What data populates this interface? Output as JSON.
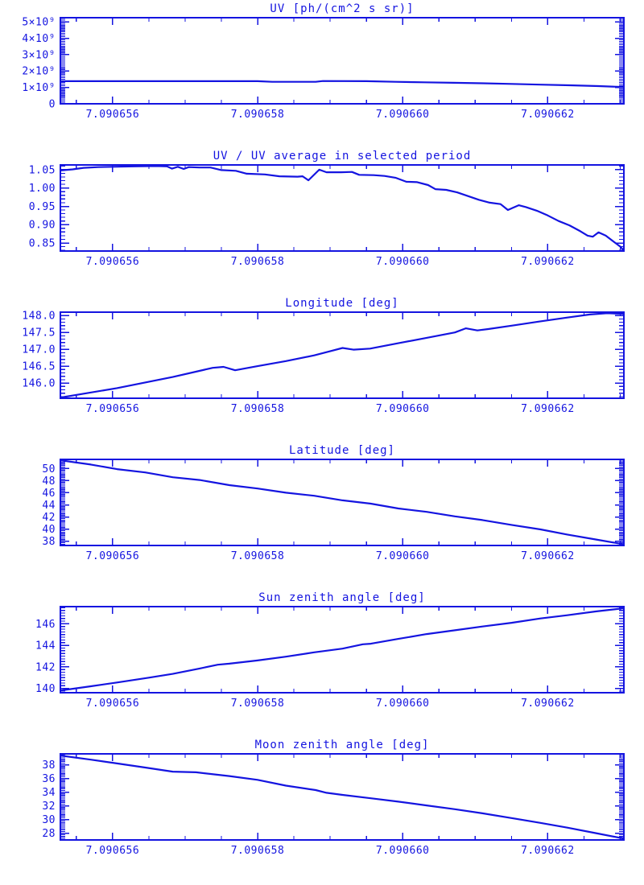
{
  "page": {
    "background": "#FFFFFF",
    "plot_color": "#1414E0"
  },
  "x_axis": {
    "lim": [
      7.09065528,
      7.09066305
    ],
    "ticks": [
      {
        "value": 7.090656,
        "label": "7.090656"
      },
      {
        "value": 7.090658,
        "label": "7.090658"
      },
      {
        "value": 7.09066,
        "label": "7.090660"
      },
      {
        "value": 7.090662,
        "label": "7.090662"
      }
    ],
    "minor_step": 5e-07
  },
  "chart_data": [
    {
      "type": "line",
      "title": "UV [ph/(cm^2 s sr)]",
      "ylim": [
        0,
        5250000000.0
      ],
      "yticks": [
        {
          "value": 5000000000.0,
          "label": "5×10⁹"
        },
        {
          "value": 4000000000.0,
          "label": "4×10⁹"
        },
        {
          "value": 3000000000.0,
          "label": "3×10⁹"
        },
        {
          "value": 2000000000.0,
          "label": "2×10⁹"
        },
        {
          "value": 1000000000.0,
          "label": "1×10⁹"
        },
        {
          "value": 0,
          "label": "0"
        }
      ],
      "y_minor_step": 100000000.0,
      "points": [
        [
          7.0906553,
          1380000000.0
        ],
        [
          7.090657,
          1380000000.0
        ],
        [
          7.090658,
          1380000000.0
        ],
        [
          7.0906582,
          1340000000.0
        ],
        [
          7.0906588,
          1340000000.0
        ],
        [
          7.0906589,
          1390000000.0
        ],
        [
          7.0906595,
          1380000000.0
        ],
        [
          7.0906599,
          1340000000.0
        ],
        [
          7.0906603,
          1310000000.0
        ],
        [
          7.0906607,
          1280000000.0
        ],
        [
          7.0906611,
          1250000000.0
        ],
        [
          7.0906615,
          1210000000.0
        ],
        [
          7.0906619,
          1170000000.0
        ],
        [
          7.0906623,
          1130000000.0
        ],
        [
          7.0906627,
          1080000000.0
        ],
        [
          7.09066305,
          1020000000.0
        ]
      ]
    },
    {
      "type": "line",
      "title": "UV / UV average in selected period",
      "ylim": [
        0.828,
        1.063
      ],
      "yticks": [
        {
          "value": 1.05,
          "label": "1.05"
        },
        {
          "value": 1.0,
          "label": "1.00"
        },
        {
          "value": 0.95,
          "label": "0.95"
        },
        {
          "value": 0.9,
          "label": "0.90"
        },
        {
          "value": 0.85,
          "label": "0.85"
        }
      ],
      "y_minor_step": 0.01,
      "points": [
        [
          7.09065528,
          1.048
        ],
        [
          7.09065545,
          1.051
        ],
        [
          7.0906556,
          1.055
        ],
        [
          7.0906558,
          1.057
        ],
        [
          7.090656,
          1.058
        ],
        [
          7.0906563,
          1.059
        ],
        [
          7.0906566,
          1.06
        ],
        [
          7.09065675,
          1.059
        ],
        [
          7.09065682,
          1.053
        ],
        [
          7.0906569,
          1.058
        ],
        [
          7.09065698,
          1.052
        ],
        [
          7.09065705,
          1.057
        ],
        [
          7.0906572,
          1.056
        ],
        [
          7.09065735,
          1.056
        ],
        [
          7.0906575,
          1.049
        ],
        [
          7.0906577,
          1.047
        ],
        [
          7.09065785,
          1.039
        ],
        [
          7.0906581,
          1.037
        ],
        [
          7.0906583,
          1.032
        ],
        [
          7.09065855,
          1.031
        ],
        [
          7.09065862,
          1.032
        ],
        [
          7.0906587,
          1.021
        ],
        [
          7.09065885,
          1.05
        ],
        [
          7.09065895,
          1.043
        ],
        [
          7.09065915,
          1.043
        ],
        [
          7.0906593,
          1.044
        ],
        [
          7.0906594,
          1.036
        ],
        [
          7.0906596,
          1.035
        ],
        [
          7.09065975,
          1.033
        ],
        [
          7.0906599,
          1.028
        ],
        [
          7.09066005,
          1.017
        ],
        [
          7.0906602,
          1.016
        ],
        [
          7.09066035,
          1.008
        ],
        [
          7.09066045,
          0.997
        ],
        [
          7.0906606,
          0.995
        ],
        [
          7.09066075,
          0.988
        ],
        [
          7.0906609,
          0.978
        ],
        [
          7.09066105,
          0.968
        ],
        [
          7.0906612,
          0.96
        ],
        [
          7.09066135,
          0.956
        ],
        [
          7.09066145,
          0.94
        ],
        [
          7.0906616,
          0.953
        ],
        [
          7.0906617,
          0.948
        ],
        [
          7.09066185,
          0.938
        ],
        [
          7.090662,
          0.925
        ],
        [
          7.09066215,
          0.91
        ],
        [
          7.0906623,
          0.898
        ],
        [
          7.09066245,
          0.882
        ],
        [
          7.09066255,
          0.87
        ],
        [
          7.09066262,
          0.867
        ],
        [
          7.0906627,
          0.879
        ],
        [
          7.0906628,
          0.87
        ],
        [
          7.0906629,
          0.855
        ],
        [
          7.090663,
          0.84
        ],
        [
          7.09066305,
          0.829
        ]
      ]
    },
    {
      "type": "line",
      "title": "Longitude [deg]",
      "ylim": [
        145.55,
        148.1
      ],
      "yticks": [
        {
          "value": 148.0,
          "label": "148.0"
        },
        {
          "value": 147.5,
          "label": "147.5"
        },
        {
          "value": 147.0,
          "label": "147.0"
        },
        {
          "value": 146.5,
          "label": "146.5"
        },
        {
          "value": 146.0,
          "label": "146.0"
        }
      ],
      "y_minor_step": 0.1,
      "points": [
        [
          7.09065528,
          145.57
        ],
        [
          7.09065606,
          145.85
        ],
        [
          7.09065683,
          146.18
        ],
        [
          7.09065738,
          146.45
        ],
        [
          7.09065753,
          146.48
        ],
        [
          7.09065769,
          146.38
        ],
        [
          7.090658,
          146.5
        ],
        [
          7.09065839,
          146.65
        ],
        [
          7.09065878,
          146.82
        ],
        [
          7.09065901,
          146.95
        ],
        [
          7.09065917,
          147.04
        ],
        [
          7.09065932,
          146.99
        ],
        [
          7.09065955,
          147.02
        ],
        [
          7.09065994,
          147.18
        ],
        [
          7.09066033,
          147.34
        ],
        [
          7.09066072,
          147.5
        ],
        [
          7.09066087,
          147.62
        ],
        [
          7.09066103,
          147.56
        ],
        [
          7.09066118,
          147.6
        ],
        [
          7.0906615,
          147.7
        ],
        [
          7.09066188,
          147.82
        ],
        [
          7.09066227,
          147.94
        ],
        [
          7.09066258,
          148.03
        ],
        [
          7.09066282,
          148.07
        ],
        [
          7.09066305,
          148.05
        ]
      ]
    },
    {
      "type": "line",
      "title": "Latitude [deg]",
      "ylim": [
        37.3,
        51.5
      ],
      "yticks": [
        {
          "value": 50,
          "label": "50"
        },
        {
          "value": 48,
          "label": "48"
        },
        {
          "value": 46,
          "label": "46"
        },
        {
          "value": 44,
          "label": "44"
        },
        {
          "value": 42,
          "label": "42"
        },
        {
          "value": 40,
          "label": "40"
        },
        {
          "value": 38,
          "label": "38"
        }
      ],
      "y_minor_step": 0.25,
      "points": [
        [
          7.09065528,
          51.35
        ],
        [
          7.0906557,
          50.65
        ],
        [
          7.09065606,
          49.9
        ],
        [
          7.09065645,
          49.35
        ],
        [
          7.09065683,
          48.55
        ],
        [
          7.0906572,
          48.1
        ],
        [
          7.09065761,
          47.25
        ],
        [
          7.090658,
          46.7
        ],
        [
          7.09065839,
          46.0
        ],
        [
          7.09065878,
          45.5
        ],
        [
          7.09065917,
          44.75
        ],
        [
          7.09065956,
          44.2
        ],
        [
          7.09065994,
          43.4
        ],
        [
          7.09066033,
          42.85
        ],
        [
          7.09066072,
          42.1
        ],
        [
          7.0906611,
          41.5
        ],
        [
          7.0906615,
          40.7
        ],
        [
          7.0906619,
          39.95
        ],
        [
          7.09066227,
          39.1
        ],
        [
          7.09066266,
          38.3
        ],
        [
          7.09066305,
          37.5
        ]
      ]
    },
    {
      "type": "line",
      "title": "Sun zenith angle [deg]",
      "ylim": [
        139.6,
        147.6
      ],
      "yticks": [
        {
          "value": 146,
          "label": "146"
        },
        {
          "value": 144,
          "label": "144"
        },
        {
          "value": 142,
          "label": "142"
        },
        {
          "value": 140,
          "label": "140"
        }
      ],
      "y_minor_step": 0.25,
      "points": [
        [
          7.09065528,
          139.8
        ],
        [
          7.0906557,
          140.2
        ],
        [
          7.09065606,
          140.55
        ],
        [
          7.0906565,
          141.0
        ],
        [
          7.09065683,
          141.35
        ],
        [
          7.0906572,
          141.85
        ],
        [
          7.09065745,
          142.2
        ],
        [
          7.09065761,
          142.3
        ],
        [
          7.090658,
          142.6
        ],
        [
          7.09065839,
          142.95
        ],
        [
          7.09065878,
          143.35
        ],
        [
          7.09065917,
          143.7
        ],
        [
          7.09065945,
          144.1
        ],
        [
          7.09065956,
          144.15
        ],
        [
          7.09065994,
          144.6
        ],
        [
          7.09066033,
          145.05
        ],
        [
          7.09066072,
          145.4
        ],
        [
          7.0906611,
          145.75
        ],
        [
          7.0906615,
          146.1
        ],
        [
          7.0906619,
          146.5
        ],
        [
          7.09066227,
          146.8
        ],
        [
          7.09066266,
          147.15
        ],
        [
          7.09066305,
          147.45
        ]
      ]
    },
    {
      "type": "line",
      "title": "Moon zenith angle [deg]",
      "ylim": [
        27.0,
        39.6
      ],
      "yticks": [
        {
          "value": 38,
          "label": "38"
        },
        {
          "value": 36,
          "label": "36"
        },
        {
          "value": 34,
          "label": "34"
        },
        {
          "value": 32,
          "label": "32"
        },
        {
          "value": 30,
          "label": "30"
        },
        {
          "value": 28,
          "label": "28"
        }
      ],
      "y_minor_step": 0.25,
      "points": [
        [
          7.09065528,
          39.35
        ],
        [
          7.0906557,
          38.75
        ],
        [
          7.09065606,
          38.2
        ],
        [
          7.09065645,
          37.6
        ],
        [
          7.09065683,
          37.0
        ],
        [
          7.09065715,
          36.9
        ],
        [
          7.09065761,
          36.35
        ],
        [
          7.090658,
          35.8
        ],
        [
          7.09065839,
          34.95
        ],
        [
          7.0906588,
          34.3
        ],
        [
          7.09065895,
          33.9
        ],
        [
          7.09065917,
          33.6
        ],
        [
          7.09065956,
          33.1
        ],
        [
          7.09065994,
          32.6
        ],
        [
          7.09066033,
          32.05
        ],
        [
          7.09066072,
          31.5
        ],
        [
          7.0906611,
          30.9
        ],
        [
          7.0906615,
          30.2
        ],
        [
          7.0906619,
          29.5
        ],
        [
          7.09066227,
          28.8
        ],
        [
          7.09066266,
          28.0
        ],
        [
          7.09066305,
          27.2
        ]
      ]
    }
  ]
}
